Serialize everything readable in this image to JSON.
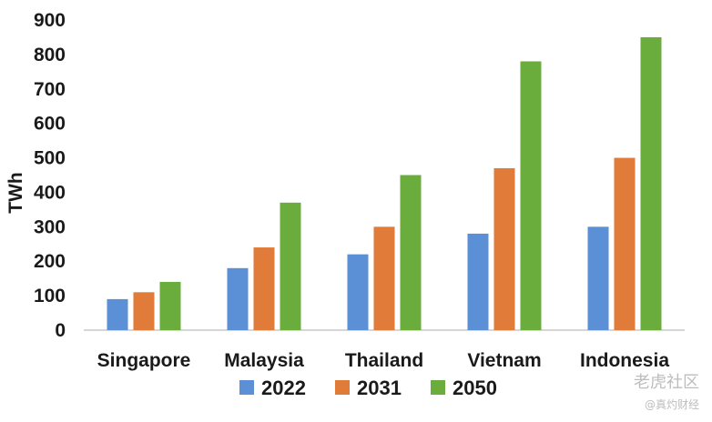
{
  "chart_data": {
    "type": "bar",
    "title": "",
    "xlabel": "",
    "ylabel": "TWh",
    "ylim": [
      0,
      900
    ],
    "yticks": [
      "0",
      "100",
      "200",
      "300",
      "400",
      "500",
      "600",
      "700",
      "800",
      "900"
    ],
    "categories": [
      "Singapore",
      "Malaysia",
      "Thailand",
      "Vietnam",
      "Indonesia"
    ],
    "series": [
      {
        "name": "2022",
        "color": "#5b8fd6",
        "values": [
          90,
          180,
          220,
          280,
          300
        ]
      },
      {
        "name": "2031",
        "color": "#e07b39",
        "values": [
          110,
          240,
          300,
          470,
          500
        ]
      },
      {
        "name": "2050",
        "color": "#6aad3d",
        "values": [
          140,
          370,
          450,
          780,
          850
        ]
      }
    ],
    "grid": false,
    "legend_position": "bottom"
  },
  "watermark": {
    "main": "老虎社区",
    "sub": "@真灼财经"
  }
}
